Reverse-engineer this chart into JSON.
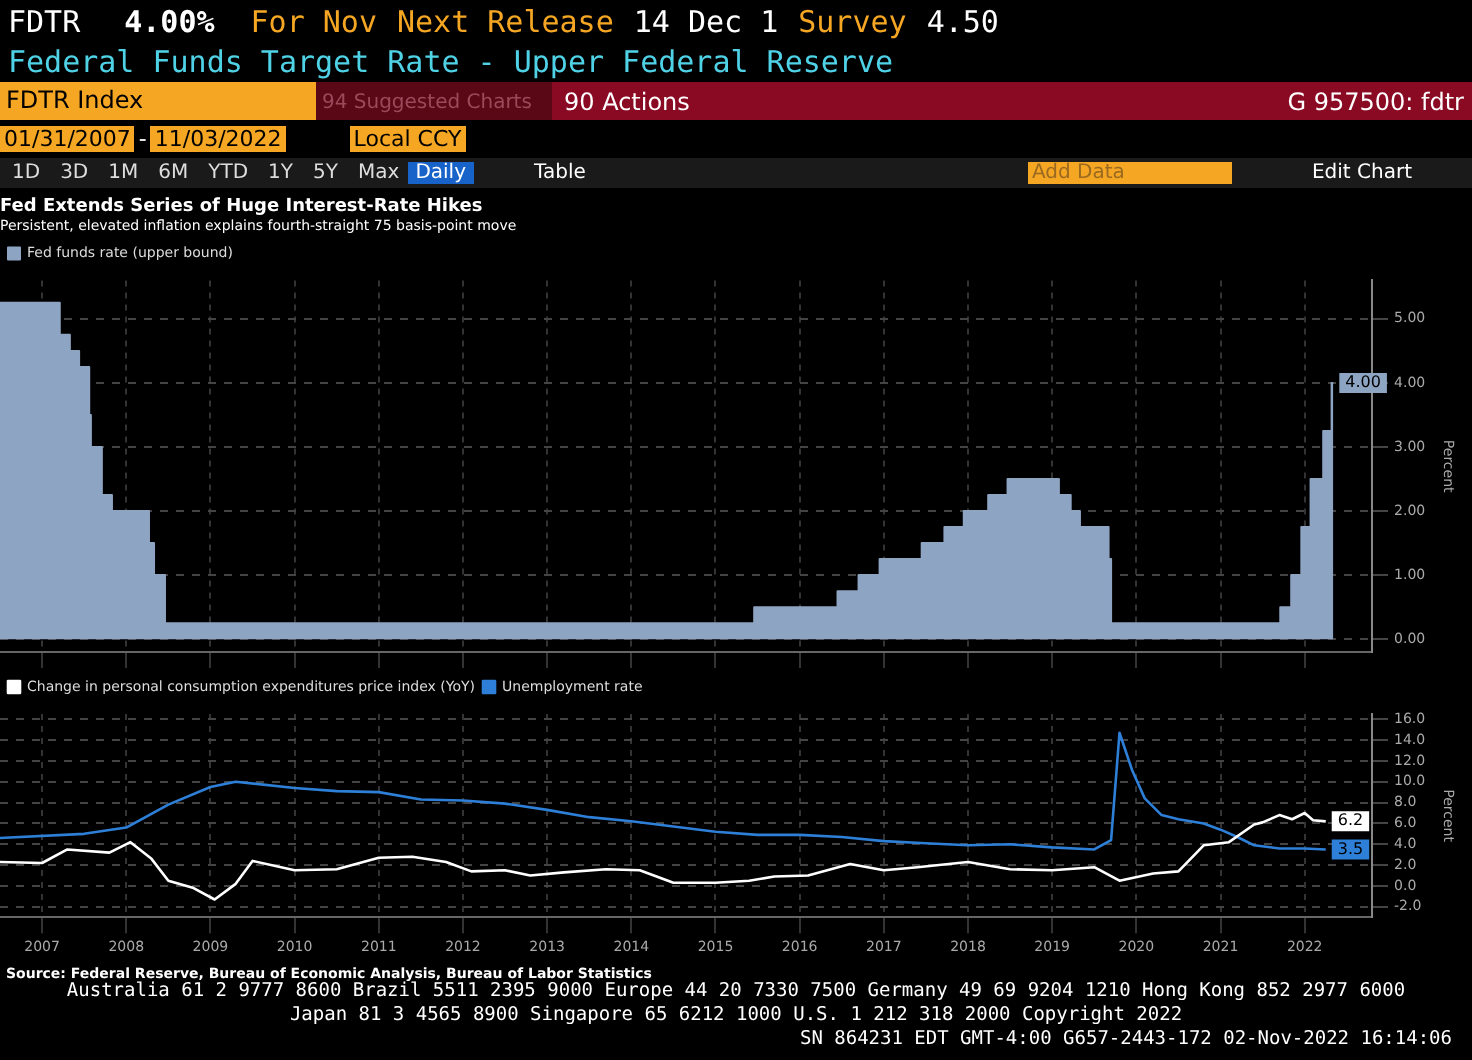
{
  "chart_data": [
    {
      "type": "other",
      "annotations": [
        "FDTR",
        "4.00%",
        "For Nov",
        "Next Release",
        "14 Dec 1",
        "Survey",
        "4.50",
        "Federal Funds Target Rate - Upper Federal Reserve",
        "FDTR Index",
        "94 Suggested Charts",
        "90 Actions",
        "G 957500: fdtr",
        "01/31/2007",
        "-",
        "11/03/2022",
        "Local CCY",
        "1D",
        "3D",
        "1M",
        "6M",
        "YTD",
        "1Y",
        "5Y",
        "Max",
        "Daily",
        "Table",
        "Add Data",
        "Edit Chart",
        "Australia 61 2 9777 8600 Brazil 5511 2395 9000 Europe 44 20 7330 7500 Germany 49 69 9204 1210 Hong Kong 852 2977 6000",
        "Japan 81 3 4565 8900     Singapore 65 6212 1000     U.S. 1 212 318 2000     Copyright 2022",
        "SN 864231 EDT  GMT-4:00 G657-2443-172 02-Nov-2022 16:14:06"
      ]
    },
    {
      "type": "area",
      "title": "Fed Extends Series of Huge Interest-Rate Hikes",
      "subtitle": "Persistent, elevated inflation explains fourth-straight 75 basis-point move",
      "ylabel": "Percent",
      "series": [
        {
          "name": "Fed funds rate (upper bound)",
          "color": "#8ea4c3",
          "x": [
            2007.0,
            2007.71,
            2007.71,
            2007.83,
            2007.83,
            2007.94,
            2007.94,
            2008.06,
            2008.06,
            2008.08,
            2008.08,
            2008.21,
            2008.21,
            2008.33,
            2008.33,
            2008.77,
            2008.77,
            2008.83,
            2008.83,
            2008.96,
            2008.96,
            2015.96,
            2015.96,
            2016.95,
            2016.95,
            2017.2,
            2017.2,
            2017.45,
            2017.45,
            2017.95,
            2017.95,
            2018.22,
            2018.22,
            2018.45,
            2018.45,
            2018.74,
            2018.74,
            2018.97,
            2018.97,
            2019.58,
            2019.58,
            2019.72,
            2019.72,
            2019.83,
            2019.83,
            2020.17,
            2020.17,
            2020.2,
            2020.2,
            2022.21,
            2022.21,
            2022.34,
            2022.34,
            2022.46,
            2022.46,
            2022.57,
            2022.57,
            2022.72,
            2022.72,
            2022.82,
            2022.82,
            2022.84
          ],
          "values": [
            5.25,
            5.25,
            4.75,
            4.75,
            4.5,
            4.5,
            4.25,
            4.25,
            3.5,
            3.5,
            3.0,
            3.0,
            2.25,
            2.25,
            2.0,
            2.0,
            1.5,
            1.5,
            1.0,
            1.0,
            0.25,
            0.25,
            0.5,
            0.5,
            0.75,
            0.75,
            1.0,
            1.0,
            1.25,
            1.25,
            1.5,
            1.5,
            1.75,
            1.75,
            2.0,
            2.0,
            2.25,
            2.25,
            2.5,
            2.5,
            2.25,
            2.25,
            2.0,
            2.0,
            1.75,
            1.75,
            1.25,
            1.25,
            0.25,
            0.25,
            0.5,
            0.5,
            1.0,
            1.0,
            1.75,
            1.75,
            2.5,
            2.5,
            3.25,
            3.25,
            4.0,
            4.0
          ],
          "value_labels": [
            null,
            null,
            null,
            null,
            null,
            null,
            null,
            null,
            null,
            null,
            null,
            null,
            null,
            null,
            null,
            null,
            null,
            null,
            null,
            null,
            null,
            null,
            null,
            null,
            null,
            null,
            null,
            null,
            null,
            null,
            null,
            null,
            null,
            null,
            null,
            null,
            null,
            null,
            null,
            null,
            null,
            null,
            null,
            null,
            null,
            null,
            null,
            null,
            null,
            null,
            null,
            null,
            null,
            null,
            null,
            null,
            null,
            null,
            null,
            null,
            null,
            "4.00"
          ]
        }
      ],
      "xlim": [
        2007.0,
        2023.3
      ],
      "xticks": [
        {
          "value": 2007.5,
          "label": null
        },
        {
          "value": 2008.5,
          "label": null
        },
        {
          "value": 2009.5,
          "label": null
        },
        {
          "value": 2010.5,
          "label": null
        },
        {
          "value": 2011.5,
          "label": null
        },
        {
          "value": 2012.5,
          "label": null
        },
        {
          "value": 2013.5,
          "label": null
        },
        {
          "value": 2014.5,
          "label": null
        },
        {
          "value": 2015.5,
          "label": null
        },
        {
          "value": 2016.5,
          "label": null
        },
        {
          "value": 2017.5,
          "label": null
        },
        {
          "value": 2018.5,
          "label": null
        },
        {
          "value": 2019.5,
          "label": null
        },
        {
          "value": 2020.5,
          "label": null
        },
        {
          "value": 2021.5,
          "label": null
        },
        {
          "value": 2022.5,
          "label": null
        }
      ],
      "ylim": [
        -0.2,
        5.6
      ],
      "yticks": [
        {
          "value": 0,
          "label": "0.00"
        },
        {
          "value": 1,
          "label": "1.00"
        },
        {
          "value": 2,
          "label": "2.00"
        },
        {
          "value": 3,
          "label": "3.00"
        },
        {
          "value": 4,
          "label": "4.00"
        },
        {
          "value": 5,
          "label": "5.00"
        }
      ],
      "tick_labels": "y",
      "grid": true,
      "legend": "top left"
    },
    {
      "type": "line",
      "ylabel": "Percent",
      "annotations": [
        "Source: Federal Reserve, Bureau of Economic Analysis, Bureau of Labor Statistics"
      ],
      "series": [
        {
          "name": "Change in personal consumption expenditures price index (YoY)",
          "color": "#ffffff",
          "x": [
            2007.0,
            2007.5,
            2007.8,
            2008.3,
            2008.55,
            2008.8,
            2009.0,
            2009.3,
            2009.55,
            2009.8,
            2010.0,
            2010.5,
            2011.0,
            2011.5,
            2011.9,
            2012.3,
            2012.6,
            2013.0,
            2013.3,
            2013.7,
            2014.2,
            2014.6,
            2015.0,
            2015.5,
            2015.9,
            2016.2,
            2016.6,
            2017.1,
            2017.5,
            2017.9,
            2018.5,
            2019.0,
            2019.5,
            2020.0,
            2020.3,
            2020.7,
            2021.0,
            2021.3,
            2021.6,
            2021.9,
            2022.0,
            2022.2,
            2022.35,
            2022.5,
            2022.6,
            2022.75
          ],
          "values": [
            2.3,
            2.2,
            3.5,
            3.2,
            4.2,
            2.6,
            0.5,
            -0.2,
            -1.3,
            0.2,
            2.4,
            1.5,
            1.6,
            2.7,
            2.8,
            2.3,
            1.4,
            1.5,
            1.0,
            1.3,
            1.6,
            1.5,
            0.3,
            0.3,
            0.5,
            0.9,
            1.0,
            2.1,
            1.5,
            1.8,
            2.3,
            1.6,
            1.5,
            1.8,
            0.5,
            1.2,
            1.4,
            3.9,
            4.2,
            5.9,
            6.1,
            6.8,
            6.4,
            7.0,
            6.3,
            6.2
          ],
          "value_labels": [
            null,
            null,
            null,
            null,
            null,
            null,
            null,
            null,
            null,
            null,
            null,
            null,
            null,
            null,
            null,
            null,
            null,
            null,
            null,
            null,
            null,
            null,
            null,
            null,
            null,
            null,
            null,
            null,
            null,
            null,
            null,
            null,
            null,
            null,
            null,
            null,
            null,
            null,
            null,
            null,
            null,
            null,
            null,
            null,
            null,
            "6.2"
          ]
        },
        {
          "name": "Unemployment rate",
          "color": "#2d7fd8",
          "x": [
            2007.0,
            2008.0,
            2008.5,
            2009.0,
            2009.5,
            2009.8,
            2010.5,
            2011.0,
            2011.5,
            2012.0,
            2012.5,
            2013.0,
            2013.5,
            2014.0,
            2014.5,
            2015.0,
            2015.5,
            2016.0,
            2016.5,
            2017.0,
            2017.5,
            2018.0,
            2018.5,
            2019.0,
            2019.5,
            2020.0,
            2020.2,
            2020.3,
            2020.45,
            2020.6,
            2020.8,
            2021.0,
            2021.3,
            2021.5,
            2021.7,
            2021.9,
            2022.2,
            2022.5,
            2022.75
          ],
          "values": [
            4.6,
            5.0,
            5.6,
            7.8,
            9.5,
            10.0,
            9.4,
            9.1,
            9.0,
            8.3,
            8.2,
            7.9,
            7.3,
            6.6,
            6.2,
            5.7,
            5.2,
            4.9,
            4.9,
            4.7,
            4.3,
            4.1,
            3.9,
            4.0,
            3.7,
            3.5,
            4.4,
            14.7,
            11.1,
            8.4,
            6.8,
            6.4,
            6.0,
            5.4,
            4.7,
            3.9,
            3.6,
            3.6,
            3.5
          ],
          "value_labels": [
            null,
            null,
            null,
            null,
            null,
            null,
            null,
            null,
            null,
            null,
            null,
            null,
            null,
            null,
            null,
            null,
            null,
            null,
            null,
            null,
            null,
            null,
            null,
            null,
            null,
            null,
            null,
            null,
            null,
            null,
            null,
            null,
            null,
            null,
            null,
            null,
            null,
            null,
            "3.5"
          ]
        }
      ],
      "xlim": [
        2007.0,
        2023.3
      ],
      "xticks": [
        {
          "value": 2007.5,
          "label": "2007"
        },
        {
          "value": 2008.5,
          "label": "2008"
        },
        {
          "value": 2009.5,
          "label": "2009"
        },
        {
          "value": 2010.5,
          "label": "2010"
        },
        {
          "value": 2011.5,
          "label": "2011"
        },
        {
          "value": 2012.5,
          "label": "2012"
        },
        {
          "value": 2013.5,
          "label": "2013"
        },
        {
          "value": 2014.5,
          "label": "2014"
        },
        {
          "value": 2015.5,
          "label": "2015"
        },
        {
          "value": 2016.5,
          "label": "2016"
        },
        {
          "value": 2017.5,
          "label": "2017"
        },
        {
          "value": 2018.5,
          "label": "2018"
        },
        {
          "value": 2019.5,
          "label": "2019"
        },
        {
          "value": 2020.5,
          "label": "2020"
        },
        {
          "value": 2021.5,
          "label": "2021"
        },
        {
          "value": 2022.5,
          "label": "2022"
        }
      ],
      "ylim": [
        -3,
        16.5
      ],
      "yticks": [
        {
          "value": -2,
          "label": "-2.0"
        },
        {
          "value": 0,
          "label": "0.0"
        },
        {
          "value": 2,
          "label": "2.0"
        },
        {
          "value": 4,
          "label": "4.0"
        },
        {
          "value": 6,
          "label": "6.0"
        },
        {
          "value": 8,
          "label": "8.0"
        },
        {
          "value": 10,
          "label": "10.0"
        },
        {
          "value": 12,
          "label": "12.0"
        },
        {
          "value": 14,
          "label": "14.0"
        },
        {
          "value": 16,
          "label": "16.0"
        }
      ],
      "grid": true,
      "legend": "top left"
    }
  ]
}
